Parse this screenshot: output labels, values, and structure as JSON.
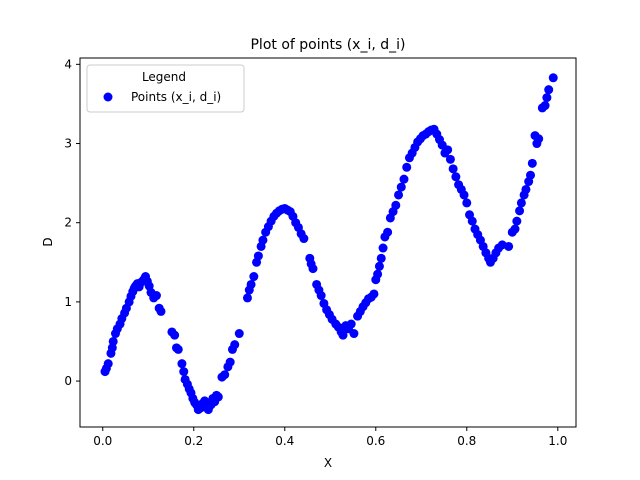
{
  "chart_data": {
    "type": "scatter",
    "title": "Plot of points (x_i, d_i)",
    "xlabel": "X",
    "ylabel": "D",
    "xlim": [
      -0.05,
      1.04
    ],
    "ylim": [
      -0.58,
      4.08
    ],
    "xticks": [
      0.0,
      0.2,
      0.4,
      0.6,
      0.8,
      1.0
    ],
    "xtick_labels": [
      "0.0",
      "0.2",
      "0.4",
      "0.6",
      "0.8",
      "1.0"
    ],
    "yticks": [
      0,
      1,
      2,
      3,
      4
    ],
    "ytick_labels": [
      "0",
      "1",
      "2",
      "3",
      "4"
    ],
    "grid": false,
    "legend": {
      "title": "Legend",
      "position": "top-left"
    },
    "series": [
      {
        "name": "Points (x_i, d_i)",
        "color": "#0000ff",
        "marker": "circle",
        "points": [
          [
            0.005,
            0.12
          ],
          [
            0.008,
            0.16
          ],
          [
            0.012,
            0.22
          ],
          [
            0.018,
            0.35
          ],
          [
            0.021,
            0.42
          ],
          [
            0.023,
            0.5
          ],
          [
            0.028,
            0.6
          ],
          [
            0.032,
            0.66
          ],
          [
            0.038,
            0.72
          ],
          [
            0.042,
            0.79
          ],
          [
            0.048,
            0.86
          ],
          [
            0.052,
            0.92
          ],
          [
            0.058,
            1.0
          ],
          [
            0.062,
            1.07
          ],
          [
            0.066,
            1.13
          ],
          [
            0.069,
            1.17
          ],
          [
            0.072,
            1.2
          ],
          [
            0.076,
            1.23
          ],
          [
            0.08,
            1.19
          ],
          [
            0.085,
            1.25
          ],
          [
            0.09,
            1.28
          ],
          [
            0.094,
            1.32
          ],
          [
            0.098,
            1.26
          ],
          [
            0.102,
            1.2
          ],
          [
            0.106,
            1.12
          ],
          [
            0.112,
            1.05
          ],
          [
            0.118,
            1.08
          ],
          [
            0.124,
            0.92
          ],
          [
            0.128,
            0.88
          ],
          [
            0.152,
            0.62
          ],
          [
            0.158,
            0.58
          ],
          [
            0.162,
            0.42
          ],
          [
            0.166,
            0.4
          ],
          [
            0.174,
            0.22
          ],
          [
            0.178,
            0.12
          ],
          [
            0.181,
            0.02
          ],
          [
            0.186,
            -0.04
          ],
          [
            0.19,
            -0.1
          ],
          [
            0.194,
            -0.15
          ],
          [
            0.198,
            -0.22
          ],
          [
            0.202,
            -0.27
          ],
          [
            0.206,
            -0.3
          ],
          [
            0.21,
            -0.36
          ],
          [
            0.215,
            -0.34
          ],
          [
            0.22,
            -0.28
          ],
          [
            0.224,
            -0.25
          ],
          [
            0.228,
            -0.33
          ],
          [
            0.232,
            -0.36
          ],
          [
            0.238,
            -0.3
          ],
          [
            0.242,
            -0.22
          ],
          [
            0.246,
            -0.26
          ],
          [
            0.25,
            -0.18
          ],
          [
            0.254,
            -0.2
          ],
          [
            0.262,
            0.05
          ],
          [
            0.268,
            0.08
          ],
          [
            0.275,
            0.18
          ],
          [
            0.28,
            0.24
          ],
          [
            0.285,
            0.4
          ],
          [
            0.29,
            0.46
          ],
          [
            0.3,
            0.6
          ],
          [
            0.318,
            1.05
          ],
          [
            0.322,
            1.15
          ],
          [
            0.326,
            1.22
          ],
          [
            0.332,
            1.32
          ],
          [
            0.338,
            1.5
          ],
          [
            0.342,
            1.58
          ],
          [
            0.348,
            1.7
          ],
          [
            0.352,
            1.78
          ],
          [
            0.358,
            1.88
          ],
          [
            0.364,
            1.95
          ],
          [
            0.37,
            2.02
          ],
          [
            0.376,
            2.08
          ],
          [
            0.382,
            2.12
          ],
          [
            0.388,
            2.15
          ],
          [
            0.394,
            2.17
          ],
          [
            0.4,
            2.18
          ],
          [
            0.406,
            2.16
          ],
          [
            0.412,
            2.14
          ],
          [
            0.418,
            2.08
          ],
          [
            0.424,
            2.0
          ],
          [
            0.43,
            1.94
          ],
          [
            0.436,
            1.86
          ],
          [
            0.442,
            1.8
          ],
          [
            0.455,
            1.55
          ],
          [
            0.458,
            1.48
          ],
          [
            0.462,
            1.42
          ],
          [
            0.47,
            1.22
          ],
          [
            0.475,
            1.15
          ],
          [
            0.48,
            1.08
          ],
          [
            0.486,
            0.98
          ],
          [
            0.492,
            0.9
          ],
          [
            0.498,
            0.84
          ],
          [
            0.504,
            0.78
          ],
          [
            0.512,
            0.72
          ],
          [
            0.518,
            0.68
          ],
          [
            0.524,
            0.62
          ],
          [
            0.528,
            0.58
          ],
          [
            0.534,
            0.7
          ],
          [
            0.54,
            0.66
          ],
          [
            0.546,
            0.72
          ],
          [
            0.552,
            0.6
          ],
          [
            0.56,
            0.82
          ],
          [
            0.566,
            0.88
          ],
          [
            0.572,
            0.94
          ],
          [
            0.578,
            0.99
          ],
          [
            0.584,
            1.04
          ],
          [
            0.59,
            1.06
          ],
          [
            0.596,
            1.1
          ],
          [
            0.6,
            1.28
          ],
          [
            0.604,
            1.35
          ],
          [
            0.608,
            1.45
          ],
          [
            0.612,
            1.55
          ],
          [
            0.616,
            1.68
          ],
          [
            0.62,
            1.82
          ],
          [
            0.626,
            1.88
          ],
          [
            0.632,
            2.06
          ],
          [
            0.638,
            2.14
          ],
          [
            0.644,
            2.22
          ],
          [
            0.65,
            2.35
          ],
          [
            0.656,
            2.45
          ],
          [
            0.662,
            2.55
          ],
          [
            0.668,
            2.7
          ],
          [
            0.674,
            2.82
          ],
          [
            0.68,
            2.88
          ],
          [
            0.686,
            2.95
          ],
          [
            0.692,
            3.02
          ],
          [
            0.698,
            3.06
          ],
          [
            0.704,
            3.1
          ],
          [
            0.71,
            3.12
          ],
          [
            0.716,
            3.15
          ],
          [
            0.722,
            3.17
          ],
          [
            0.728,
            3.18
          ],
          [
            0.734,
            3.12
          ],
          [
            0.74,
            3.05
          ],
          [
            0.746,
            2.98
          ],
          [
            0.752,
            2.88
          ],
          [
            0.758,
            2.92
          ],
          [
            0.764,
            2.8
          ],
          [
            0.77,
            2.68
          ],
          [
            0.776,
            2.58
          ],
          [
            0.782,
            2.48
          ],
          [
            0.788,
            2.42
          ],
          [
            0.794,
            2.35
          ],
          [
            0.8,
            2.25
          ],
          [
            0.806,
            2.1
          ],
          [
            0.812,
            2.02
          ],
          [
            0.818,
            1.92
          ],
          [
            0.824,
            1.85
          ],
          [
            0.83,
            1.78
          ],
          [
            0.836,
            1.7
          ],
          [
            0.842,
            1.62
          ],
          [
            0.848,
            1.55
          ],
          [
            0.852,
            1.5
          ],
          [
            0.858,
            1.55
          ],
          [
            0.864,
            1.62
          ],
          [
            0.87,
            1.68
          ],
          [
            0.878,
            1.72
          ],
          [
            0.892,
            1.7
          ],
          [
            0.9,
            1.88
          ],
          [
            0.906,
            1.92
          ],
          [
            0.91,
            2.02
          ],
          [
            0.916,
            2.15
          ],
          [
            0.92,
            2.25
          ],
          [
            0.926,
            2.35
          ],
          [
            0.93,
            2.42
          ],
          [
            0.936,
            2.52
          ],
          [
            0.94,
            2.6
          ],
          [
            0.944,
            2.75
          ],
          [
            0.95,
            3.1
          ],
          [
            0.954,
            3.0
          ],
          [
            0.958,
            3.06
          ],
          [
            0.966,
            3.45
          ],
          [
            0.972,
            3.48
          ],
          [
            0.976,
            3.58
          ],
          [
            0.98,
            3.68
          ],
          [
            0.99,
            3.83
          ]
        ]
      }
    ]
  }
}
